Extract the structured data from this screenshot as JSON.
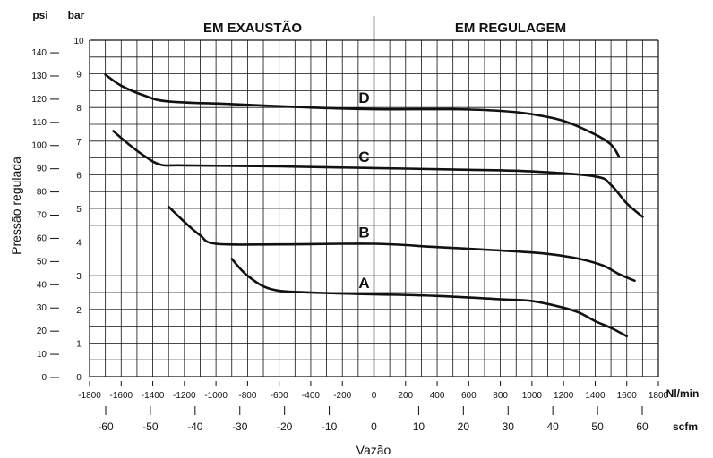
{
  "chart_data": {
    "type": "line",
    "title": "",
    "regions": {
      "left": "EM EXAUSTÃO",
      "right": "EM REGULAGEM"
    },
    "xlabel": "Vazão",
    "ylabel": "Pressão regulada",
    "x_unit_primary": "Nl/min",
    "x_unit_secondary": "scfm",
    "y_unit_left": "psi",
    "y_unit_right": "bar",
    "x_ticks_nlmin": [
      "-1800",
      "-1600",
      "-1400",
      "-1200",
      "-1000",
      "-800",
      "-600",
      "-400",
      "-200",
      "0",
      "200",
      "400",
      "600",
      "800",
      "1000",
      "1200",
      "1400",
      "1600",
      "1800"
    ],
    "x_ticks_scfm": [
      "-60",
      "-50",
      "-40",
      "-30",
      "-20",
      "-10",
      "0",
      "10",
      "20",
      "30",
      "40",
      "50",
      "60"
    ],
    "y_ticks_psi": [
      "0",
      "10",
      "20",
      "30",
      "40",
      "50",
      "60",
      "70",
      "80",
      "90",
      "100",
      "110",
      "120",
      "130",
      "140"
    ],
    "y_ticks_bar": [
      "0",
      "1",
      "2",
      "3",
      "4",
      "5",
      "6",
      "7",
      "8",
      "9",
      "10"
    ],
    "xlim": [
      -1800,
      1800
    ],
    "ylim_bar": [
      0,
      10
    ],
    "grid": true,
    "series": [
      {
        "name": "A",
        "points": [
          [
            -900,
            3.5
          ],
          [
            -800,
            3.0
          ],
          [
            -650,
            2.6
          ],
          [
            -400,
            2.5
          ],
          [
            0,
            2.45
          ],
          [
            400,
            2.4
          ],
          [
            800,
            2.3
          ],
          [
            1000,
            2.25
          ],
          [
            1200,
            2.05
          ],
          [
            1300,
            1.9
          ],
          [
            1400,
            1.65
          ],
          [
            1500,
            1.45
          ],
          [
            1600,
            1.2
          ]
        ]
      },
      {
        "name": "B",
        "points": [
          [
            -1300,
            5.05
          ],
          [
            -1200,
            4.6
          ],
          [
            -1100,
            4.2
          ],
          [
            -1000,
            3.95
          ],
          [
            -600,
            3.93
          ],
          [
            0,
            3.95
          ],
          [
            400,
            3.85
          ],
          [
            800,
            3.75
          ],
          [
            1100,
            3.65
          ],
          [
            1300,
            3.5
          ],
          [
            1450,
            3.3
          ],
          [
            1550,
            3.05
          ],
          [
            1650,
            2.85
          ]
        ]
      },
      {
        "name": "C",
        "points": [
          [
            -1650,
            7.3
          ],
          [
            -1550,
            6.9
          ],
          [
            -1450,
            6.55
          ],
          [
            -1350,
            6.3
          ],
          [
            -1200,
            6.28
          ],
          [
            -600,
            6.25
          ],
          [
            0,
            6.2
          ],
          [
            600,
            6.15
          ],
          [
            1000,
            6.1
          ],
          [
            1400,
            5.95
          ],
          [
            1500,
            5.7
          ],
          [
            1600,
            5.15
          ],
          [
            1700,
            4.75
          ]
        ]
      },
      {
        "name": "D",
        "points": [
          [
            -1700,
            8.98
          ],
          [
            -1600,
            8.65
          ],
          [
            -1450,
            8.35
          ],
          [
            -1300,
            8.18
          ],
          [
            -900,
            8.1
          ],
          [
            -400,
            8.0
          ],
          [
            0,
            7.95
          ],
          [
            500,
            7.95
          ],
          [
            800,
            7.9
          ],
          [
            1000,
            7.8
          ],
          [
            1200,
            7.6
          ],
          [
            1400,
            7.2
          ],
          [
            1500,
            6.9
          ],
          [
            1550,
            6.55
          ]
        ]
      }
    ]
  }
}
